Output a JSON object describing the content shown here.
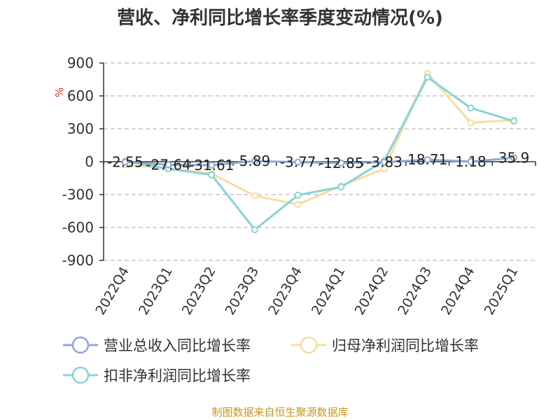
{
  "chart_data": {
    "type": "line",
    "title": "营收、净利同比增长率季度变动情况(%)",
    "y_unit": "%",
    "categories": [
      "2022Q4",
      "2023Q1",
      "2023Q2",
      "2023Q3",
      "2023Q4",
      "2024Q1",
      "2024Q2",
      "2024Q3",
      "2024Q4",
      "2025Q1"
    ],
    "ylim": [
      -900,
      900
    ],
    "yticks": [
      "900",
      "600",
      "300",
      "0",
      "-300",
      "-600",
      "-900"
    ],
    "ytick_values": [
      900,
      600,
      300,
      0,
      -300,
      -600,
      -900
    ],
    "grid": true,
    "legend_position": "bottom",
    "series": [
      {
        "name": "营业总收入同比增长率",
        "color": "#8fa8d8",
        "values": [
          -2.55,
          -27.64,
          -31.61,
          5.89,
          -3.77,
          -12.85,
          -3.83,
          18.71,
          1.18,
          35.9
        ],
        "labels": [
          "-2.55",
          "-27.64",
          "-31.61",
          "5.89",
          "-3.77",
          "-12.85",
          "-3.83",
          "18.71",
          "1.18",
          "35.9"
        ]
      },
      {
        "name": "归母净利润同比增长率",
        "color": "#f9dca0",
        "values": [
          -30,
          -60,
          -110,
          -310,
          -390,
          -220,
          -65,
          805,
          355,
          380
        ],
        "labels": []
      },
      {
        "name": "扣非净利润同比增长率",
        "color": "#86d4d8",
        "values": [
          5,
          -65,
          -120,
          -620,
          -305,
          -230,
          10,
          770,
          490,
          370
        ],
        "labels": []
      }
    ]
  },
  "footer": {
    "source": "制图数据来自恒生聚源数据库"
  }
}
